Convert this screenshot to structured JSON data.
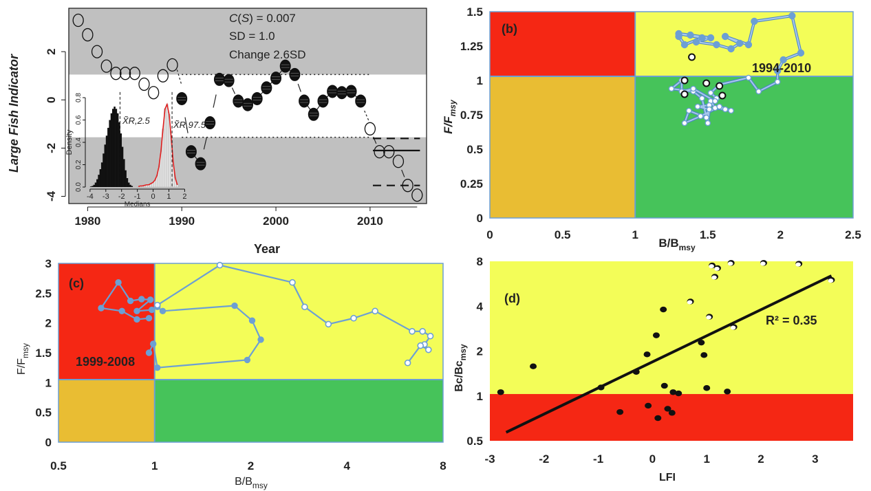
{
  "colors": {
    "red": "#f52714",
    "yellow": "#f3fd58",
    "orange": "#e9bd33",
    "green": "#46c35a",
    "gray": "#c0c0c0",
    "trajectory": "#6c9fd4",
    "black": "#111111"
  },
  "chart_data": [
    {
      "type": "scatter",
      "panel": "a",
      "xlabel": "Year",
      "ylabel": "Large Fish Indicator",
      "xlim": [
        1978,
        2016
      ],
      "ylim": [
        -4.3,
        3.8
      ],
      "xticks": [
        1980,
        1990,
        2000,
        2010
      ],
      "yticks": [
        2,
        0,
        -2,
        -4
      ],
      "annotations": [
        "C(S) = 0.007",
        "SD = 1.0",
        "Change 2.6SD"
      ],
      "upper_band": [
        1.05,
        3.8
      ],
      "lower_band": [
        -4.3,
        -1.55
      ],
      "open_series": {
        "x": [
          1979,
          1980,
          1981,
          1982,
          1983,
          1984,
          1985,
          1986,
          1987,
          1988,
          1989,
          2010,
          2011,
          2012,
          2013,
          2014,
          2015
        ],
        "y": [
          3.3,
          2.7,
          2.0,
          1.4,
          1.1,
          1.1,
          1.1,
          0.65,
          0.3,
          1.0,
          1.45,
          -1.2,
          -2.15,
          -2.15,
          -2.55,
          -3.55,
          -3.95
        ]
      },
      "filled_series": {
        "x": [
          1990,
          1991,
          1992,
          1993,
          1994,
          1995,
          1996,
          1997,
          1998,
          1999,
          2000,
          2001,
          2002,
          2003,
          2004,
          2005,
          2006,
          2007,
          2008,
          2009
        ],
        "y": [
          0.05,
          -2.15,
          -2.65,
          -0.95,
          0.85,
          0.8,
          -0.05,
          -0.2,
          0.05,
          0.5,
          0.9,
          1.4,
          1.05,
          -0.05,
          -0.6,
          -0.05,
          0.35,
          0.3,
          0.35,
          -0.05
        ]
      },
      "solid_mean": -2.1,
      "dashed_bounds": [
        -1.6,
        -3.55
      ],
      "inset": {
        "type": "histogram",
        "xlabel": "Medians",
        "ylabel": "Density",
        "xticks": [
          -4,
          -3,
          -2,
          -1,
          0,
          1,
          2
        ],
        "yticks": [
          0.0,
          0.2,
          0.4,
          0.6,
          0.8
        ],
        "label_low": "X̃R,2.5",
        "label_high": "X̃R,97.5",
        "quantiles": [
          -2.1,
          1.2
        ]
      }
    },
    {
      "type": "line",
      "panel": "b",
      "label": "(b)",
      "xlabel": "B/B",
      "xlabel_sub": "msy",
      "ylabel": "F/F",
      "ylabel_sub": "msy",
      "xlim": [
        0,
        2.5
      ],
      "ylim": [
        0,
        1.5
      ],
      "xticks": [
        "0",
        "0.5",
        "1",
        "1.5",
        "2",
        "2.5"
      ],
      "yticks": [
        "0",
        "0.25",
        "0.5",
        "0.75",
        "1",
        "1.25",
        "1.5"
      ],
      "annotation": "1994-2010",
      "trajectory": {
        "x": [
          1.3,
          1.34,
          1.46,
          1.3,
          1.38,
          1.52,
          1.42,
          1.56,
          1.66,
          1.72,
          1.62,
          1.78,
          1.82,
          2.08,
          2.14,
          2.02,
          1.98,
          1.98,
          1.85,
          1.78,
          1.58,
          1.52,
          1.56,
          1.52,
          1.55,
          1.62,
          1.66,
          1.58,
          1.45,
          1.34,
          1.37,
          1.49,
          1.51,
          1.43,
          1.51,
          1.5,
          1.46,
          1.4,
          1.25,
          1.32,
          1.32,
          1.4,
          1.55
        ],
        "y": [
          1.32,
          1.26,
          1.31,
          1.34,
          1.33,
          1.31,
          1.28,
          1.26,
          1.23,
          1.27,
          1.32,
          1.26,
          1.43,
          1.47,
          1.2,
          1.15,
          1.07,
          0.99,
          0.92,
          1.02,
          0.97,
          0.91,
          0.87,
          0.85,
          0.8,
          0.79,
          0.78,
          0.81,
          0.74,
          0.69,
          0.78,
          0.73,
          0.82,
          0.81,
          0.79,
          0.69,
          0.87,
          0.92,
          0.94,
          1.0,
          0.92,
          0.94,
          0.85
        ]
      },
      "highlighted_points": {
        "x": [
          1.39,
          1.34,
          1.49,
          1.58,
          1.34,
          1.6
        ],
        "y": [
          1.17,
          1.0,
          0.98,
          0.96,
          0.9,
          0.89
        ]
      }
    },
    {
      "type": "line",
      "panel": "c",
      "label": "(c)",
      "xlabel": "B/B",
      "xlabel_sub": "msy",
      "ylabel": "F/F",
      "ylabel_sub": "msy",
      "xscale": "log",
      "xlim": [
        0.5,
        8
      ],
      "ylim": [
        0,
        3
      ],
      "xticks": [
        "0.5",
        "1",
        "2",
        "4",
        "8"
      ],
      "yticks": [
        "0",
        "0.5",
        "1",
        "1.5",
        "2",
        "2.5",
        "3"
      ],
      "annotation": "1999-2008",
      "filled_trajectory": {
        "x": [
          0.96,
          0.88,
          0.79,
          0.68,
          0.77,
          0.84,
          0.91,
          0.97,
          0.88,
          0.98,
          1.02,
          1.06,
          1.78,
          2.02,
          2.15,
          1.95,
          1.02,
          0.99,
          0.96
        ],
        "y": [
          2.08,
          2.06,
          2.2,
          2.25,
          2.68,
          2.37,
          2.4,
          2.39,
          2.2,
          2.22,
          2.27,
          2.2,
          2.29,
          2.04,
          1.72,
          1.38,
          1.25,
          1.65,
          1.5
        ]
      },
      "open_trajectory": {
        "x": [
          1.02,
          1.6,
          2.7,
          2.95,
          3.5,
          4.2,
          4.9,
          6.4,
          6.9,
          7.3,
          7.0,
          7.2,
          6.8,
          6.2
        ],
        "y": [
          2.3,
          2.97,
          2.68,
          2.27,
          1.98,
          2.08,
          2.2,
          1.86,
          1.86,
          1.78,
          1.64,
          1.55,
          1.62,
          1.33
        ]
      }
    },
    {
      "type": "scatter",
      "panel": "d",
      "label": "(d)",
      "xlabel": "LFI",
      "ylabel": "Bc/Bc",
      "ylabel_sub": "msy",
      "yscale": "log",
      "xlim": [
        -3,
        3.7
      ],
      "ylim": [
        0.5,
        8
      ],
      "xticks": [
        "-3",
        "-2",
        "-1",
        "0",
        "1",
        "2",
        "3"
      ],
      "yticks": [
        "0.5",
        "1",
        "2",
        "4",
        "8"
      ],
      "annotation": "R² = 0.35",
      "fit_line": {
        "x": [
          -2.7,
          3.3
        ],
        "y": [
          0.57,
          6.4
        ]
      },
      "filled_points": {
        "x": [
          -2.8,
          -2.2,
          -0.95,
          -0.6,
          -0.3,
          -0.1,
          0.07,
          -0.08,
          0.1,
          0.22,
          0.2,
          0.28,
          0.36,
          0.38,
          0.48,
          0.9,
          0.95,
          1.0,
          1.38
        ],
        "y": [
          1.06,
          1.58,
          1.14,
          0.78,
          1.45,
          1.9,
          2.55,
          0.86,
          0.71,
          1.17,
          3.8,
          0.82,
          0.77,
          1.06,
          1.04,
          2.28,
          1.88,
          1.13,
          1.07
        ]
      },
      "open_points": {
        "x": [
          0.7,
          1.1,
          1.15,
          1.2,
          1.45,
          2.05,
          2.7,
          3.3,
          1.05,
          1.5
        ],
        "y": [
          4.3,
          7.5,
          6.3,
          7.2,
          7.8,
          7.8,
          7.7,
          6.0,
          3.4,
          2.9
        ]
      }
    }
  ]
}
